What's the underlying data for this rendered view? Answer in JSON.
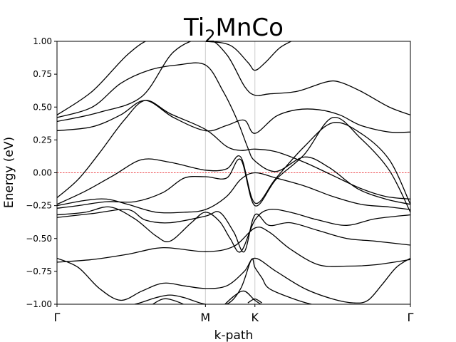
{
  "chart_data": {
    "type": "line",
    "title": {
      "main": "Ti",
      "sub": "2",
      "rest": "MnCo"
    },
    "xlabel": "k-path",
    "ylabel": "Energy (eV)",
    "ylim": [
      -1.0,
      1.0
    ],
    "xlim": [
      0.0,
      1.0
    ],
    "yticks": [
      1.0,
      0.75,
      0.5,
      0.25,
      0.0,
      -0.25,
      -0.5,
      -0.75,
      -1.0
    ],
    "ytick_labels": [
      "1.00",
      "0.75",
      "0.50",
      "0.25",
      "0.00",
      "−0.25",
      "−0.50",
      "−0.75",
      "−1.00"
    ],
    "kpoints": [
      {
        "label": "Γ",
        "x": 0.0
      },
      {
        "label": "M",
        "x": 0.42
      },
      {
        "label": "K",
        "x": 0.56
      },
      {
        "label": "Γ",
        "x": 1.0
      }
    ],
    "fermi_level": 0.0,
    "fermi_color": "#e8161b",
    "line_color": "#000000",
    "grid_color": "#cccccc",
    "series": [
      {
        "x": [
          0.0,
          0.1,
          0.2,
          0.27,
          0.35,
          0.42,
          0.49,
          0.54,
          0.56,
          0.59,
          0.63,
          0.67
        ],
        "values": [
          0.44,
          0.62,
          0.9,
          1.02,
          1.01,
          1.0,
          0.97,
          0.84,
          0.78,
          0.84,
          0.95,
          1.01
        ]
      },
      {
        "x": [
          0.0,
          0.1,
          0.18,
          0.26,
          0.34,
          0.42,
          0.47,
          0.51,
          0.54,
          0.56,
          0.62,
          0.7,
          0.77,
          0.85,
          0.93,
          1.0
        ],
        "values": [
          0.42,
          0.5,
          0.68,
          0.78,
          0.82,
          0.82,
          0.62,
          0.4,
          0.19,
          0.09,
          0.01,
          0.12,
          0.04,
          -0.12,
          -0.2,
          -0.24
        ]
      },
      {
        "x": [
          0.0,
          0.12,
          0.24,
          0.33,
          0.42,
          0.48,
          0.53,
          0.56,
          0.6,
          0.68,
          0.76,
          0.8,
          0.86,
          0.94,
          1.0
        ],
        "values": [
          0.39,
          0.46,
          0.58,
          0.92,
          1.02,
          0.9,
          0.66,
          0.59,
          0.6,
          0.62,
          0.69,
          0.69,
          0.62,
          0.5,
          0.44
        ]
      },
      {
        "x": [
          0.0,
          0.1,
          0.18,
          0.25,
          0.33,
          0.42,
          0.48,
          0.53,
          0.56,
          0.62,
          0.68,
          0.74,
          0.8,
          0.86,
          0.94,
          1.0
        ],
        "values": [
          0.32,
          0.35,
          0.44,
          0.55,
          0.42,
          0.32,
          0.36,
          0.4,
          0.3,
          0.43,
          0.48,
          0.48,
          0.44,
          0.36,
          0.31,
          0.31
        ]
      },
      {
        "x": [
          0.0,
          0.06,
          0.12,
          0.19,
          0.25,
          0.32,
          0.42,
          0.48,
          0.52,
          0.56,
          0.62,
          0.7,
          0.78,
          0.86,
          0.93,
          1.0
        ],
        "values": [
          -0.19,
          -0.05,
          0.15,
          0.4,
          0.55,
          0.45,
          0.33,
          0.2,
          0.17,
          0.18,
          0.16,
          0.08,
          -0.02,
          -0.12,
          -0.18,
          -0.2
        ]
      },
      {
        "x": [
          0.0,
          0.08,
          0.16,
          0.24,
          0.32,
          0.42,
          0.48,
          0.52,
          0.56,
          0.62,
          0.7,
          0.78,
          0.86,
          0.94,
          1.0
        ],
        "values": [
          -0.24,
          -0.14,
          -0.02,
          0.1,
          0.08,
          0.02,
          0.03,
          0.12,
          -0.23,
          -0.04,
          0.2,
          0.38,
          0.3,
          0.1,
          -0.24
        ]
      },
      {
        "x": [
          0.0,
          0.06,
          0.14,
          0.22,
          0.3,
          0.36,
          0.42,
          0.48,
          0.52,
          0.56,
          0.62,
          0.7,
          0.78,
          0.86,
          0.94,
          1.0
        ],
        "values": [
          -0.27,
          -0.25,
          -0.22,
          -0.22,
          -0.15,
          -0.04,
          -0.03,
          -0.04,
          0.1,
          -0.25,
          -0.05,
          0.14,
          0.42,
          0.26,
          0.02,
          -0.3
        ]
      },
      {
        "x": [
          0.0,
          0.08,
          0.14,
          0.2,
          0.28,
          0.36,
          0.42,
          0.48,
          0.52,
          0.56,
          0.62,
          0.7,
          0.78,
          0.86,
          0.94,
          1.0
        ],
        "values": [
          -0.25,
          -0.21,
          -0.2,
          -0.24,
          -0.3,
          -0.3,
          -0.28,
          -0.18,
          -0.05,
          0.0,
          -0.04,
          -0.1,
          -0.18,
          -0.24,
          -0.26,
          -0.28
        ]
      },
      {
        "x": [
          0.0,
          0.08,
          0.15,
          0.22,
          0.28,
          0.32,
          0.38,
          0.42,
          0.46,
          0.49,
          0.52,
          0.56,
          0.6,
          0.66,
          0.74,
          0.82,
          0.9,
          1.0
        ],
        "values": [
          -0.32,
          -0.3,
          -0.26,
          -0.35,
          -0.48,
          -0.52,
          -0.38,
          -0.3,
          -0.37,
          -0.5,
          -0.6,
          -0.36,
          -0.28,
          -0.3,
          -0.36,
          -0.4,
          -0.35,
          -0.32
        ]
      },
      {
        "x": [
          0.0,
          0.1,
          0.2,
          0.25,
          0.32,
          0.42,
          0.46,
          0.5,
          0.53,
          0.56,
          0.6,
          0.66,
          0.74,
          0.82,
          0.9,
          1.0
        ],
        "values": [
          -0.34,
          -0.31,
          -0.28,
          -0.36,
          -0.38,
          -0.33,
          -0.3,
          -0.45,
          -0.6,
          -0.32,
          -0.4,
          -0.38,
          -0.44,
          -0.5,
          -0.52,
          -0.55
        ]
      },
      {
        "x": [
          0.0,
          0.1,
          0.2,
          0.3,
          0.42,
          0.5,
          0.56,
          0.6,
          0.66,
          0.74,
          0.82,
          0.9,
          1.0
        ],
        "values": [
          -0.68,
          -0.66,
          -0.62,
          -0.57,
          -0.6,
          -0.56,
          -0.42,
          -0.45,
          -0.58,
          -0.7,
          -0.71,
          -0.7,
          -0.66
        ]
      },
      {
        "x": [
          0.0,
          0.06,
          0.12,
          0.18,
          0.24,
          0.3,
          0.36,
          0.42,
          0.48,
          0.53,
          0.56,
          0.62,
          0.7,
          0.78,
          0.84,
          0.88,
          0.92,
          0.96,
          1.0
        ],
        "values": [
          -0.65,
          -0.72,
          -0.88,
          -0.97,
          -0.9,
          -0.84,
          -0.86,
          -0.88,
          -0.86,
          -0.75,
          -0.65,
          -0.75,
          -0.88,
          -0.96,
          -0.99,
          -0.97,
          -0.85,
          -0.72,
          -0.65
        ]
      },
      {
        "x": [
          0.16,
          0.22,
          0.28,
          0.32,
          0.36,
          0.42,
          0.48,
          0.52,
          0.55,
          0.56,
          0.58,
          0.6,
          0.66,
          0.72,
          0.78,
          0.86,
          0.94
        ],
        "values": [
          -1.02,
          -1.0,
          -0.95,
          -0.93,
          -0.95,
          -1.0,
          -1.0,
          -0.88,
          -0.66,
          -0.72,
          -0.8,
          -0.88,
          -0.95,
          -1.0,
          -1.02,
          -1.04,
          -1.05
        ]
      },
      {
        "x": [
          0.26,
          0.3,
          0.34,
          0.38
        ],
        "values": [
          -1.02,
          -0.96,
          -0.98,
          -1.03
        ]
      },
      {
        "x": [
          0.46,
          0.5,
          0.53,
          0.56,
          0.59,
          0.62
        ],
        "values": [
          -1.04,
          -0.94,
          -0.9,
          -0.97,
          -1.02,
          -1.06
        ]
      },
      {
        "x": [
          0.54,
          0.56,
          0.58
        ],
        "values": [
          -0.99,
          -0.96,
          -0.99
        ]
      }
    ]
  }
}
